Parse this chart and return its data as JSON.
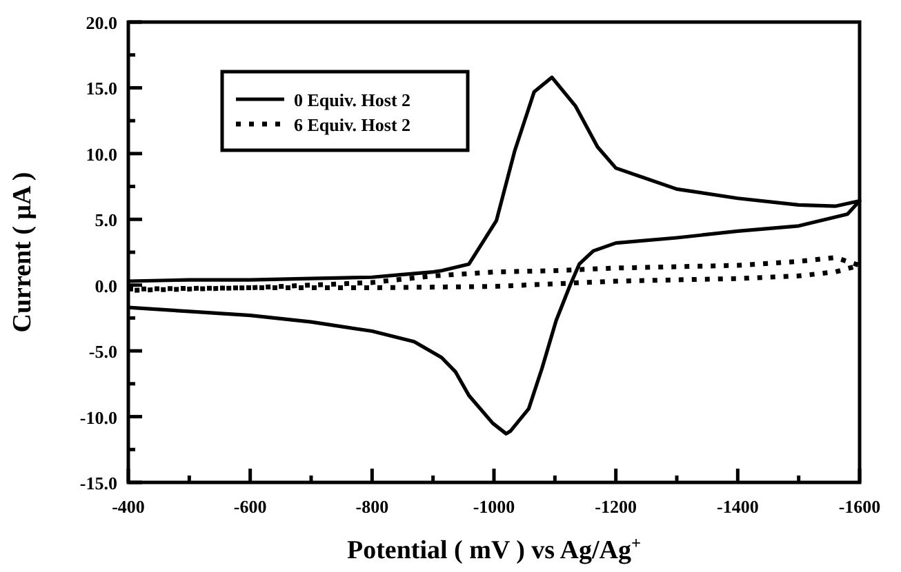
{
  "chart_data": {
    "type": "line",
    "xlabel": "Potential ( mV ) vs Ag/Ag$^{+}$",
    "ylabel": "Current ( μA )",
    "xlim": [
      -400,
      -1600
    ],
    "ylim": [
      -15,
      20
    ],
    "xticks": [
      -400,
      {
        "value": -500,
        "label": null
      },
      -600,
      {
        "value": -700,
        "label": null
      },
      -800,
      {
        "value": -900,
        "label": null
      },
      -1000,
      {
        "value": -1100,
        "label": null
      },
      -1200,
      {
        "value": -1300,
        "label": null
      },
      -1400,
      {
        "value": -1500,
        "label": null
      },
      -1600
    ],
    "yticks": [
      {
        "value": -15,
        "label": "-15.0"
      },
      {
        "value": -12.5,
        "label": null
      },
      {
        "value": -10,
        "label": "-10.0"
      },
      {
        "value": -7.5,
        "label": null
      },
      {
        "value": -5,
        "label": "-5.0"
      },
      {
        "value": -2.5,
        "label": null
      },
      {
        "value": 0,
        "label": "0.0"
      },
      {
        "value": 2.5,
        "label": null
      },
      {
        "value": 5,
        "label": "5.0"
      },
      {
        "value": 7.5,
        "label": null
      },
      {
        "value": 10,
        "label": "10.0"
      },
      {
        "value": 12.5,
        "label": null
      },
      {
        "value": 15,
        "label": "15.0"
      },
      {
        "value": 17.5,
        "label": null
      },
      {
        "value": 20,
        "label": "20.0"
      }
    ],
    "grid": false,
    "legend": "top left",
    "series": [
      {
        "name": "0 Equiv. Host 2",
        "color": "#000000",
        "line_style": "solid",
        "x": [
          -400,
          -500,
          -600,
          -700,
          -800,
          -850,
          -900,
          -914,
          -959,
          -1004,
          -1034,
          -1066,
          -1095,
          -1134,
          -1170,
          -1200,
          -1300,
          -1400,
          -1500,
          -1560,
          -1600,
          -1580,
          -1500,
          -1400,
          -1300,
          -1200,
          -1163,
          -1140,
          -1125,
          -1102,
          -1079,
          -1057,
          -1027,
          -1020,
          -998,
          -959,
          -937,
          -914,
          -869,
          -800,
          -700,
          -600,
          -500,
          -400
        ],
        "values": [
          0.3,
          0.4,
          0.4,
          0.5,
          0.6,
          0.8,
          1.0,
          1.1,
          1.6,
          4.9,
          10.2,
          14.7,
          15.8,
          13.6,
          10.5,
          8.9,
          7.3,
          6.6,
          6.1,
          6.0,
          6.4,
          5.4,
          4.5,
          4.1,
          3.6,
          3.2,
          2.6,
          1.6,
          0,
          -2.7,
          -6.3,
          -9.4,
          -11.1,
          -11.3,
          -10.5,
          -8.4,
          -6.6,
          -5.5,
          -4.3,
          -3.5,
          -2.8,
          -2.3,
          -2.0,
          -1.7
        ]
      },
      {
        "name": "6 Equiv. Host 2",
        "color": "#000000",
        "line_style": "dotted",
        "x": [
          -400,
          -600,
          -800,
          -1000,
          -1100,
          -1200,
          -1300,
          -1400,
          -1500,
          -1560,
          -1600,
          -1560,
          -1500,
          -1400,
          -1300,
          -1200,
          -1100,
          -1000,
          -900,
          -800,
          -600,
          -400
        ],
        "values": [
          -0.3,
          -0.2,
          -0.2,
          -0.1,
          0.1,
          0.3,
          0.4,
          0.5,
          0.7,
          1.0,
          1.5,
          2.1,
          1.8,
          1.5,
          1.4,
          1.3,
          1.1,
          1.0,
          0.7,
          0.2,
          -0.2,
          -0.4
        ]
      }
    ]
  }
}
